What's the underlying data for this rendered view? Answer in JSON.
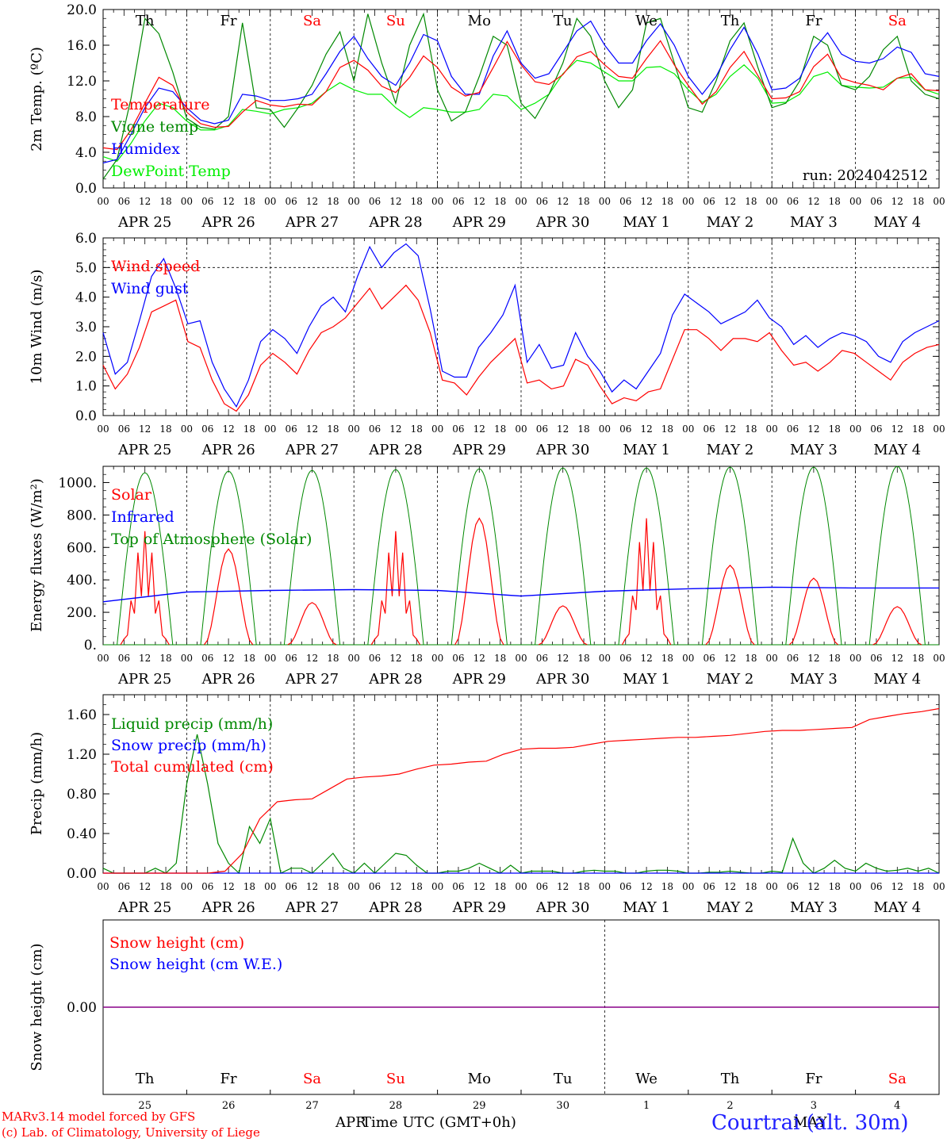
{
  "colors": {
    "red": "#ff0000",
    "green": "#008800",
    "blue": "#0000ff",
    "lightgreen": "#00ee00",
    "purple": "#880088",
    "black": "#000000",
    "title_blue": "#2020ff"
  },
  "x_hour_labels": [
    "00",
    "06",
    "12",
    "18"
  ],
  "date_labels": [
    "APR 25",
    "APR 26",
    "APR 27",
    "APR 28",
    "APR 29",
    "APR 30",
    "MAY  1",
    "MAY  2",
    "MAY  3",
    "MAY  4"
  ],
  "weekdays": [
    {
      "label": "Th",
      "weekend": false
    },
    {
      "label": "Fr",
      "weekend": false
    },
    {
      "label": "Sa",
      "weekend": true
    },
    {
      "label": "Su",
      "weekend": true
    },
    {
      "label": "Mo",
      "weekend": false
    },
    {
      "label": "Tu",
      "weekend": false
    },
    {
      "label": "We",
      "weekend": false
    },
    {
      "label": "Th",
      "weekend": false
    },
    {
      "label": "Fr",
      "weekend": false
    },
    {
      "label": "Sa",
      "weekend": true
    }
  ],
  "day_numbers": [
    "25",
    "26",
    "27",
    "28",
    "29",
    "30",
    "1",
    "2",
    "3",
    "4"
  ],
  "footer": {
    "model": "MARv3.14 model forced by GFS",
    "lab": "(c) Lab. of Climatology, University of Liege",
    "month_apr": "APR",
    "month_may": "MAY",
    "xlabel": "Time UTC (GMT+0h)",
    "station": "Courtrai (alt. 30m)"
  },
  "chart_data": [
    {
      "type": "line",
      "ylabel": "2m Temp. (ºC)",
      "run": "run: 2024042512",
      "ylim": [
        0,
        20
      ],
      "yticks": [
        "0.0",
        "4.0",
        "8.0",
        "12.0",
        "16.0",
        "20.0"
      ],
      "x_unit": "hours since APR 25 00 UTC (3-hourly)",
      "series": [
        {
          "name": "Temperature",
          "color": "red",
          "values": [
            4.5,
            4.3,
            6.5,
            9.5,
            12.4,
            11.5,
            8.5,
            7.2,
            6.8,
            6.9,
            8.5,
            9.8,
            9.3,
            9.1,
            9.4,
            9.3,
            10.8,
            13.5,
            14.3,
            13.2,
            11.4,
            10.7,
            12.4,
            14.8,
            13.5,
            11.3,
            10.3,
            10.7,
            13.5,
            16.4,
            13.8,
            11.9,
            11.6,
            12.7,
            14.7,
            15.3,
            13.8,
            12.5,
            12.3,
            14.5,
            16.5,
            13.8,
            11.5,
            9.4,
            10.8,
            13.5,
            15.3,
            12.6,
            10.0,
            10.1,
            10.8,
            13.6,
            15.0,
            12.3,
            11.8,
            11.5,
            11.0,
            12.3,
            12.8,
            11.0,
            10.9
          ]
        },
        {
          "name": "Vigne temp",
          "color": "green",
          "values": [
            1.0,
            3.2,
            10.0,
            19.0,
            17.3,
            13.0,
            7.8,
            6.8,
            6.6,
            8.0,
            18.5,
            9.0,
            8.8,
            6.8,
            9.0,
            11.5,
            15.0,
            17.5,
            12.0,
            19.5,
            14.0,
            9.5,
            16.0,
            19.5,
            11.0,
            7.5,
            8.5,
            12.5,
            17.0,
            16.0,
            9.5,
            7.8,
            10.5,
            14.0,
            19.0,
            17.0,
            12.0,
            9.0,
            11.0,
            18.5,
            19.0,
            14.0,
            9.0,
            8.5,
            12.0,
            16.5,
            18.5,
            13.5,
            9.0,
            9.5,
            12.0,
            17.0,
            16.0,
            11.5,
            11.0,
            12.5,
            15.5,
            17.0,
            12.0,
            10.5,
            10.0
          ]
        },
        {
          "name": "Humidex",
          "color": "blue",
          "values": [
            2.8,
            3.2,
            6.0,
            9.0,
            11.2,
            10.8,
            9.0,
            7.6,
            7.2,
            7.6,
            10.5,
            10.3,
            9.8,
            9.8,
            10.0,
            10.5,
            12.8,
            15.3,
            17.0,
            14.5,
            12.5,
            11.5,
            14.0,
            17.2,
            16.5,
            12.5,
            10.5,
            10.5,
            14.8,
            17.6,
            14.0,
            12.3,
            12.8,
            15.2,
            17.6,
            18.7,
            16.0,
            14.0,
            14.0,
            16.5,
            18.4,
            16.0,
            12.5,
            10.5,
            12.5,
            15.5,
            18.0,
            15.0,
            11.0,
            11.2,
            12.3,
            15.5,
            17.4,
            15.0,
            14.2,
            14.0,
            14.5,
            15.8,
            15.2,
            12.8,
            12.5
          ]
        },
        {
          "name": "DewPoint Temp",
          "color": "lightgreen",
          "values": [
            3.5,
            3.0,
            5.0,
            7.5,
            9.5,
            9.0,
            7.5,
            6.5,
            6.5,
            7.0,
            8.8,
            8.6,
            8.3,
            8.8,
            9.0,
            9.5,
            10.8,
            11.8,
            11.0,
            10.5,
            10.5,
            9.0,
            7.9,
            9.0,
            8.8,
            8.5,
            8.5,
            8.8,
            10.5,
            10.3,
            8.8,
            9.5,
            10.5,
            12.8,
            14.3,
            14.0,
            13.0,
            12.0,
            12.0,
            13.5,
            13.6,
            12.8,
            11.0,
            9.6,
            10.5,
            12.5,
            13.8,
            12.3,
            9.5,
            9.6,
            10.5,
            12.5,
            13.0,
            11.5,
            11.3,
            11.2,
            11.3,
            12.3,
            12.4,
            11.0,
            10.5
          ]
        }
      ]
    },
    {
      "type": "line",
      "ylabel": "10m Wind (m/s)",
      "ylim": [
        0,
        6
      ],
      "yticks": [
        "0.0",
        "1.0",
        "2.0",
        "3.0",
        "4.0",
        "5.0",
        "6.0"
      ],
      "x_unit": "hours since APR 25 00 UTC (3-hourly)",
      "series": [
        {
          "name": "Wind speed",
          "color": "red",
          "values": [
            1.7,
            0.9,
            1.4,
            2.3,
            3.5,
            3.7,
            3.9,
            2.5,
            2.3,
            1.2,
            0.4,
            0.15,
            0.7,
            1.7,
            2.1,
            1.8,
            1.4,
            2.2,
            2.8,
            3.0,
            3.3,
            3.8,
            4.3,
            3.6,
            4.0,
            4.4,
            3.9,
            2.8,
            1.2,
            1.1,
            0.7,
            1.3,
            1.8,
            2.2,
            2.6,
            1.1,
            1.2,
            0.9,
            1.0,
            1.9,
            1.7,
            1.0,
            0.4,
            0.6,
            0.5,
            0.8,
            0.9,
            1.9,
            2.9,
            2.9,
            2.6,
            2.2,
            2.6,
            2.6,
            2.5,
            2.8,
            2.2,
            1.7,
            1.8,
            1.5,
            1.8,
            2.2,
            2.1,
            1.8,
            1.5,
            1.2,
            1.8,
            2.1,
            2.3,
            2.4
          ]
        },
        {
          "name": "Wind gust",
          "color": "blue",
          "values": [
            2.8,
            1.4,
            1.8,
            3.2,
            4.7,
            5.3,
            4.3,
            3.1,
            3.2,
            1.8,
            0.9,
            0.3,
            1.2,
            2.5,
            2.9,
            2.6,
            2.1,
            3.0,
            3.7,
            4.0,
            3.5,
            4.7,
            5.7,
            5.0,
            5.5,
            5.8,
            5.4,
            3.6,
            1.5,
            1.3,
            1.3,
            2.3,
            2.8,
            3.4,
            4.4,
            1.8,
            2.4,
            1.6,
            1.7,
            2.8,
            2.0,
            1.5,
            0.8,
            1.2,
            0.9,
            1.5,
            2.1,
            3.4,
            4.1,
            3.8,
            3.5,
            3.1,
            3.3,
            3.5,
            3.9,
            3.3,
            3.0,
            2.4,
            2.7,
            2.3,
            2.6,
            2.8,
            2.7,
            2.5,
            2.0,
            1.8,
            2.5,
            2.8,
            3.0,
            3.2
          ]
        }
      ]
    },
    {
      "type": "line",
      "ylabel": "Energy fluxes (W/m²)",
      "ylim": [
        0,
        1100
      ],
      "yticks": [
        "0.",
        "200.",
        "400.",
        "600.",
        "800.",
        "1000."
      ],
      "series": [
        {
          "name": "Solar",
          "color": "red",
          "day_peaks": [
            700,
            590,
            260,
            700,
            780,
            240,
            780,
            490,
            410,
            235
          ]
        },
        {
          "name": "Infrared",
          "color": "blue",
          "values_daily": [
            265,
            325,
            335,
            340,
            335,
            300,
            330,
            345,
            355,
            350,
            350
          ]
        },
        {
          "name": "Top of Atmosphere (Solar)",
          "color": "green",
          "day_peaks": [
            1060,
            1070,
            1075,
            1080,
            1085,
            1090,
            1090,
            1095,
            1095,
            1100
          ]
        }
      ]
    },
    {
      "type": "line",
      "ylabel": "Precip (mm/h)",
      "ylim": [
        0,
        1.8
      ],
      "yticks": [
        "0.00",
        "0.40",
        "0.80",
        "1.20",
        "1.60"
      ],
      "series": [
        {
          "name": "Liquid precip (mm/h)",
          "color": "green",
          "values": [
            0.05,
            0,
            0,
            0,
            0,
            0.05,
            0,
            0.1,
            0.9,
            1.4,
            0.9,
            0.3,
            0.1,
            0,
            0.47,
            0.3,
            0.55,
            0,
            0.05,
            0.05,
            0,
            0.1,
            0.2,
            0.05,
            0,
            0.1,
            0,
            0.1,
            0.2,
            0.18,
            0.08,
            0,
            0,
            0.02,
            0.02,
            0.05,
            0.1,
            0.05,
            0,
            0.08,
            0,
            0.02,
            0.02,
            0.02,
            0,
            0,
            0.02,
            0.03,
            0.02,
            0.02,
            0,
            0,
            0.02,
            0.03,
            0.03,
            0.02,
            0,
            0,
            0.01,
            0.01,
            0.02,
            0.01,
            0,
            0,
            0.02,
            0.01,
            0.35,
            0.1,
            0,
            0.05,
            0.13,
            0.05,
            0.02,
            0.1,
            0.05,
            0.02,
            0.03,
            0.05,
            0.02,
            0.05,
            0
          ]
        },
        {
          "name": "Snow precip (mm/h)",
          "color": "blue",
          "values": [
            0,
            0
          ]
        },
        {
          "name": "Total cumulated (cm)",
          "color": "red",
          "values": [
            0,
            0,
            0,
            0,
            0,
            0,
            0,
            0.02,
            0.2,
            0.55,
            0.72,
            0.74,
            0.75,
            0.85,
            0.95,
            0.97,
            0.98,
            1.0,
            1.05,
            1.09,
            1.1,
            1.12,
            1.13,
            1.2,
            1.25,
            1.26,
            1.26,
            1.27,
            1.3,
            1.33,
            1.34,
            1.35,
            1.36,
            1.37,
            1.37,
            1.38,
            1.39,
            1.41,
            1.43,
            1.44,
            1.44,
            1.45,
            1.46,
            1.47,
            1.55,
            1.58,
            1.61,
            1.63,
            1.66
          ]
        }
      ]
    },
    {
      "type": "line",
      "ylabel": "Snow height (cm)",
      "yticks": [
        "0.00"
      ],
      "series": [
        {
          "name": "Snow height (cm)",
          "color": "red",
          "values": [
            0,
            0
          ]
        },
        {
          "name": "Snow height (cm W.E.)",
          "color": "blue",
          "values": [
            0,
            0
          ]
        }
      ]
    }
  ]
}
